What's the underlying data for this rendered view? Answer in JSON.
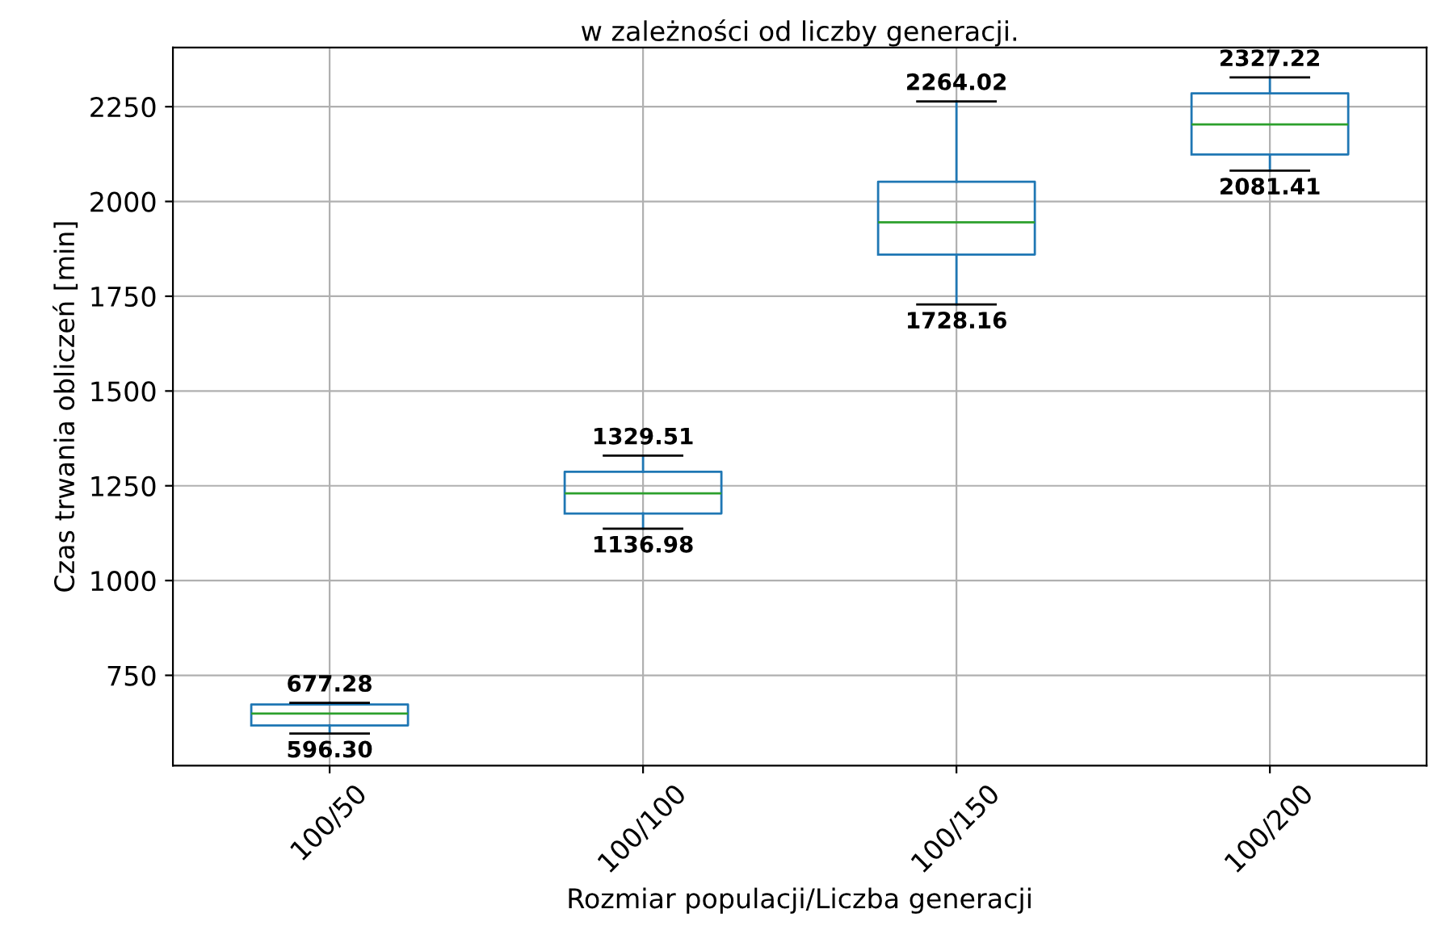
{
  "chart_data": {
    "type": "box",
    "title": "w zależności od liczby generacji.",
    "xlabel": "Rozmiar populacji/Liczba generacji",
    "ylabel": "Czas trwania obliczeń [min]",
    "categories": [
      "100/50",
      "100/100",
      "100/150",
      "100/200"
    ],
    "boxes": [
      {
        "low": 596.3,
        "q1": 618,
        "median": 649,
        "q3": 673,
        "high": 677.28
      },
      {
        "low": 1136.98,
        "q1": 1177,
        "median": 1230,
        "q3": 1287,
        "high": 1329.51
      },
      {
        "low": 1728.16,
        "q1": 1860,
        "median": 1945,
        "q3": 2052,
        "high": 2264.02
      },
      {
        "low": 2081.41,
        "q1": 2124,
        "median": 2203,
        "q3": 2285,
        "high": 2327.22
      }
    ],
    "color": "#1f77b4",
    "ylim": [
      512,
      2406
    ],
    "yticks": [
      750,
      1000,
      1250,
      1500,
      1750,
      2000,
      2250
    ],
    "grid": true,
    "annotations": [
      {
        "text": "677.28",
        "x": "100/50",
        "y": 677.28
      },
      {
        "text": "596.30",
        "x": "100/50",
        "y": 596.3
      },
      {
        "text": "1329.51",
        "x": "100/100",
        "y": 1329.51
      },
      {
        "text": "1136.98",
        "x": "100/100",
        "y": 1136.98
      },
      {
        "text": "2264.02",
        "x": "100/150",
        "y": 2264.02
      },
      {
        "text": "1728.16",
        "x": "100/150",
        "y": 1728.16
      },
      {
        "text": "2327.22",
        "x": "100/200",
        "y": 2327.22
      },
      {
        "text": "2081.41",
        "x": "100/200",
        "y": 2081.41
      }
    ]
  }
}
